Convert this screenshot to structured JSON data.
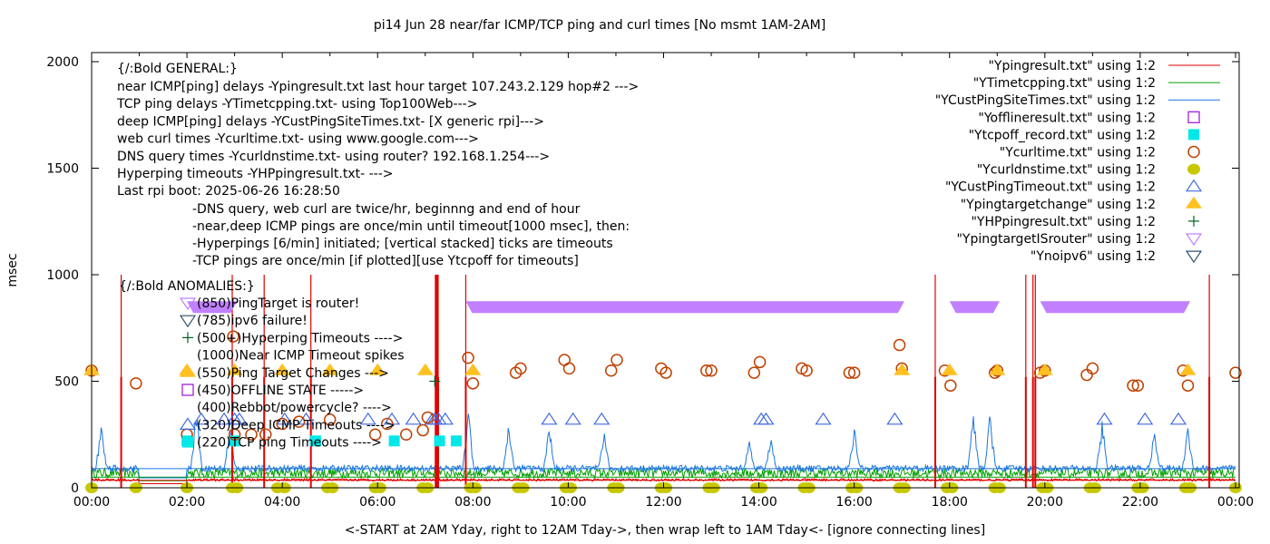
{
  "chart_data": {
    "type": "line",
    "title": "pi14 Jun 28  near/far ICMP/TCP ping and curl times [No msmt 1AM-2AM]",
    "xlabel": "<-START at 2AM Yday, right to 12AM Tday->, then wrap left to 1AM Tday<- [ignore connecting lines]",
    "ylabel": "msec",
    "xlim": [
      0,
      24
    ],
    "ylim": [
      0,
      2000
    ],
    "x_ticks": [
      "00:00",
      "02:00",
      "04:00",
      "06:00",
      "08:00",
      "10:00",
      "12:00",
      "14:00",
      "16:00",
      "18:00",
      "20:00",
      "22:00",
      "00:00"
    ],
    "y_ticks": [
      "0",
      "500",
      "1000",
      "1500",
      "2000"
    ],
    "grid": false,
    "legend_position": "top-right",
    "legend": [
      {
        "label": "\"Ypingresult.txt\" using 1:2",
        "style": "line",
        "color": "#e00000"
      },
      {
        "label": "\"YTimetcpping.txt\" using 1:2",
        "style": "line",
        "color": "#00a000"
      },
      {
        "label": "\"YCustPingSiteTimes.txt\" using 1:2",
        "style": "line",
        "color": "#1a75e0"
      },
      {
        "label": "\"Yofflineresult.txt\" using 1:2",
        "style": "open-square",
        "color": "#a020e0"
      },
      {
        "label": "\"Ytcpoff_record.txt\" using 1:2",
        "style": "filled-square",
        "color": "#00e8e8"
      },
      {
        "label": "\"Ycurltime.txt\" using 1:2",
        "style": "open-circle",
        "color": "#c04000"
      },
      {
        "label": "\"Ycurldnstime.txt\" using 1:2",
        "style": "filled-circle",
        "color": "#c8c800"
      },
      {
        "label": "\"YCustPingTimeout.txt\" using 1:2",
        "style": "open-triangle",
        "color": "#4169e1"
      },
      {
        "label": "\"Ypingtargetchange\" using 1:2",
        "style": "filled-triangle",
        "color": "#ffc020"
      },
      {
        "label": "\"YHPpingresult.txt\" using 1:2",
        "style": "plus",
        "color": "#006020"
      },
      {
        "label": "\"YpingtargetISrouter\" using 1:2",
        "style": "open-down-triangle",
        "color": "#c080ff"
      },
      {
        "label": "\"Ynoipv6\" using 1:2",
        "style": "open-down-triangle",
        "color": "#305070"
      }
    ],
    "general_notes": {
      "heading": "{/:Bold GENERAL:}",
      "lines": [
        "near ICMP[ping] delays -Ypingresult.txt last hour target 107.243.2.129 hop#2 --->",
        "TCP ping delays -YTimetcpping.txt- using Top100Web--->",
        "deep ICMP[ping] delays -YCustPingSiteTimes.txt- [X generic rpi]--->",
        "web curl times -Ycurltime.txt- using www.google.com--->",
        "DNS query times -Ycurldnstime.txt- using router? 192.168.1.254--->",
        "Hyperping timeouts -YHPpingresult.txt- --->",
        "Last rpi boot: 2025-06-26 16:28:50"
      ],
      "indented": [
        "-DNS query, web curl are twice/hr, beginnng and end of hour",
        "-near,deep ICMP pings are once/min until timeout[1000 msec], then:",
        "  -Hyperpings [6/min] initiated; [vertical stacked] ticks are timeouts",
        "-TCP pings are once/min [if plotted][use Ytcpoff for timeouts]"
      ]
    },
    "anomalies": {
      "heading": "{/:Bold ANOMALIES:}",
      "items": [
        {
          "text": "(850)PingTarget is router!",
          "marker": "open-down-triangle",
          "color": "#c080ff"
        },
        {
          "text": "(785)ipv6 failure!",
          "marker": "open-down-triangle",
          "color": "#305070"
        },
        {
          "text": "(500+)Hyperping Timeouts ---->",
          "marker": "plus",
          "color": "#006020"
        },
        {
          "text": "(1000)Near ICMP Timeout spikes",
          "marker": "none",
          "color": "#e00000"
        },
        {
          "text": "(550)Ping Target Changes --->",
          "marker": "filled-triangle",
          "color": "#ffc020"
        },
        {
          "text": "(450)OFFLINE STATE ----->",
          "marker": "open-square",
          "color": "#a020e0"
        },
        {
          "text": "(400)Rebbot/powercycle? ---->",
          "marker": "none",
          "color": "#000000"
        },
        {
          "text": "(320)Deep ICMP Timeouts ---->",
          "marker": "open-triangle",
          "color": "#4169e1"
        },
        {
          "text": "(220)TCP ping Timeouts ---->",
          "marker": "filled-square",
          "color": "#00e8e8"
        }
      ]
    },
    "series": [
      {
        "name": "Ypingresult.txt",
        "baseline_msec": 35,
        "timeout_spikes_hours": [
          0.62,
          2.95,
          3.62,
          4.6,
          7.22,
          7.25,
          7.27,
          7.85,
          17.7,
          19.6,
          19.75,
          19.8,
          23.45
        ],
        "timeout_msec": 1000
      },
      {
        "name": "YTimetcpping.txt",
        "baseline_msec": 60
      },
      {
        "name": "YCustPingSiteTimes.txt",
        "baseline_msec": 85,
        "peaks": [
          {
            "x": 0.2,
            "y": 300
          },
          {
            "x": 2.2,
            "y": 400
          },
          {
            "x": 2.9,
            "y": 320
          },
          {
            "x": 7.9,
            "y": 380
          },
          {
            "x": 8.75,
            "y": 310
          },
          {
            "x": 9.6,
            "y": 300
          },
          {
            "x": 10.75,
            "y": 280
          },
          {
            "x": 13.8,
            "y": 230
          },
          {
            "x": 14.25,
            "y": 260
          },
          {
            "x": 16.0,
            "y": 300
          },
          {
            "x": 18.5,
            "y": 400
          },
          {
            "x": 18.85,
            "y": 360
          },
          {
            "x": 21.2,
            "y": 330
          },
          {
            "x": 22.3,
            "y": 280
          },
          {
            "x": 23.0,
            "y": 300
          }
        ]
      },
      {
        "name": "Ytcpoff_record.txt",
        "points": [
          {
            "x": 2.0,
            "y": 220
          },
          {
            "x": 3.0,
            "y": 220
          },
          {
            "x": 4.7,
            "y": 220
          },
          {
            "x": 6.35,
            "y": 220
          },
          {
            "x": 7.3,
            "y": 220
          },
          {
            "x": 7.65,
            "y": 220
          }
        ]
      },
      {
        "name": "Ycurltime.txt",
        "points": [
          {
            "x": 0.0,
            "y": 550
          },
          {
            "x": 0.93,
            "y": 490
          },
          {
            "x": 2.0,
            "y": 250
          },
          {
            "x": 2.97,
            "y": 710
          },
          {
            "x": 3.0,
            "y": 250
          },
          {
            "x": 3.35,
            "y": 250
          },
          {
            "x": 3.65,
            "y": 250
          },
          {
            "x": 4.0,
            "y": 300
          },
          {
            "x": 4.35,
            "y": 310
          },
          {
            "x": 5.0,
            "y": 320
          },
          {
            "x": 5.95,
            "y": 250
          },
          {
            "x": 6.2,
            "y": 300
          },
          {
            "x": 6.6,
            "y": 250
          },
          {
            "x": 6.95,
            "y": 270
          },
          {
            "x": 7.05,
            "y": 330
          },
          {
            "x": 7.9,
            "y": 610
          },
          {
            "x": 8.0,
            "y": 490
          },
          {
            "x": 8.9,
            "y": 540
          },
          {
            "x": 9.0,
            "y": 560
          },
          {
            "x": 9.92,
            "y": 600
          },
          {
            "x": 10.02,
            "y": 560
          },
          {
            "x": 10.9,
            "y": 550
          },
          {
            "x": 11.02,
            "y": 600
          },
          {
            "x": 11.95,
            "y": 560
          },
          {
            "x": 12.05,
            "y": 540
          },
          {
            "x": 12.9,
            "y": 550
          },
          {
            "x": 13.0,
            "y": 550
          },
          {
            "x": 13.9,
            "y": 540
          },
          {
            "x": 14.02,
            "y": 590
          },
          {
            "x": 14.9,
            "y": 560
          },
          {
            "x": 15.0,
            "y": 550
          },
          {
            "x": 15.9,
            "y": 540
          },
          {
            "x": 16.0,
            "y": 540
          },
          {
            "x": 16.95,
            "y": 670
          },
          {
            "x": 17.0,
            "y": 560
          },
          {
            "x": 17.9,
            "y": 550
          },
          {
            "x": 18.02,
            "y": 480
          },
          {
            "x": 18.95,
            "y": 540
          },
          {
            "x": 19.0,
            "y": 550
          },
          {
            "x": 19.9,
            "y": 540
          },
          {
            "x": 20.0,
            "y": 550
          },
          {
            "x": 20.88,
            "y": 530
          },
          {
            "x": 21.0,
            "y": 560
          },
          {
            "x": 21.85,
            "y": 480
          },
          {
            "x": 21.95,
            "y": 480
          },
          {
            "x": 22.9,
            "y": 550
          },
          {
            "x": 23.0,
            "y": 480
          },
          {
            "x": 24.0,
            "y": 540
          }
        ]
      },
      {
        "name": "Ycurldnstime.txt",
        "points_hours": [
          0.0,
          0.93,
          2.0,
          2.95,
          3.05,
          3.9,
          4.05,
          4.95,
          5.05,
          5.95,
          6.05,
          6.95,
          7.05,
          7.95,
          8.05,
          8.95,
          9.05,
          9.95,
          10.05,
          10.95,
          11.05,
          11.95,
          12.05,
          12.95,
          13.05,
          13.95,
          14.05,
          14.95,
          15.05,
          15.95,
          16.05,
          16.95,
          17.05,
          17.95,
          18.05,
          18.95,
          19.05,
          19.95,
          20.05,
          20.95,
          21.05,
          21.95,
          22.05,
          22.95,
          23.05,
          24.0
        ],
        "y": 0
      },
      {
        "name": "YCustPingTimeout.txt",
        "y": 320,
        "points_hours": [
          2.3,
          2.78,
          3.0,
          3.1,
          4.05,
          4.5,
          5.8,
          6.3,
          6.75,
          7.15,
          7.2,
          7.28,
          7.42,
          9.6,
          10.1,
          10.7,
          14.05,
          14.15,
          15.35,
          16.85,
          21.25,
          22.1,
          22.8
        ]
      },
      {
        "name": "Ypingtargetchange",
        "y": 550,
        "points_hours": [
          0.0,
          2.0,
          3.0,
          4.0,
          5.0,
          6.0,
          7.0,
          8.0,
          17.0,
          18.0,
          19.0,
          20.0,
          23.0
        ]
      },
      {
        "name": "YHPpingresult.txt",
        "points": [
          {
            "x": 7.2,
            "y": 500
          }
        ]
      },
      {
        "name": "YpingtargetISrouter",
        "y": 850,
        "segments_hours": [
          [
            2.0,
            3.05
          ],
          [
            7.85,
            17.05
          ],
          [
            18.0,
            19.05
          ],
          [
            19.9,
            23.05
          ]
        ]
      }
    ]
  }
}
